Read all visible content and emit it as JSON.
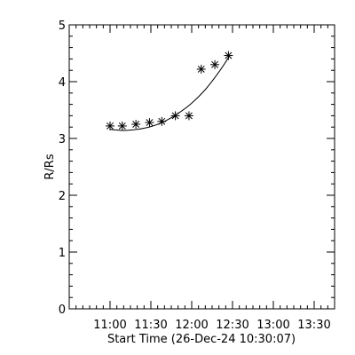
{
  "chart_data": {
    "type": "scatter",
    "xlabel": "Start Time (26-Dec-24 10:30:07)",
    "ylabel": "R/Rs",
    "x_axis_unit": "time of day",
    "xlim": [
      "10:30",
      "13:45"
    ],
    "ylim": [
      0,
      5
    ],
    "x_ticks": [
      "11:00",
      "11:30",
      "12:00",
      "12:30",
      "13:00",
      "13:30"
    ],
    "y_ticks": [
      "0",
      "1",
      "2",
      "3",
      "4",
      "5"
    ],
    "grid": false,
    "marker": "asterisk",
    "series": [
      {
        "kind": "measurements",
        "points": [
          {
            "x": "11:00",
            "y": 3.22
          },
          {
            "x": "11:09",
            "y": 3.22
          },
          {
            "x": "11:19",
            "y": 3.25
          },
          {
            "x": "11:29",
            "y": 3.28
          },
          {
            "x": "11:38",
            "y": 3.3
          },
          {
            "x": "11:48",
            "y": 3.4
          },
          {
            "x": "11:58",
            "y": 3.4
          },
          {
            "x": "12:07",
            "y": 4.22
          },
          {
            "x": "12:17",
            "y": 4.3
          },
          {
            "x": "12:27",
            "y": 4.46
          }
        ]
      },
      {
        "kind": "fit-curve",
        "points": [
          {
            "x": "11:00",
            "y": 3.16
          },
          {
            "x": "11:10",
            "y": 3.14
          },
          {
            "x": "11:20",
            "y": 3.16
          },
          {
            "x": "11:30",
            "y": 3.21
          },
          {
            "x": "11:40",
            "y": 3.3
          },
          {
            "x": "11:50",
            "y": 3.44
          },
          {
            "x": "12:00",
            "y": 3.62
          },
          {
            "x": "12:10",
            "y": 3.86
          },
          {
            "x": "12:20",
            "y": 4.17
          },
          {
            "x": "12:28",
            "y": 4.46
          }
        ]
      }
    ]
  }
}
